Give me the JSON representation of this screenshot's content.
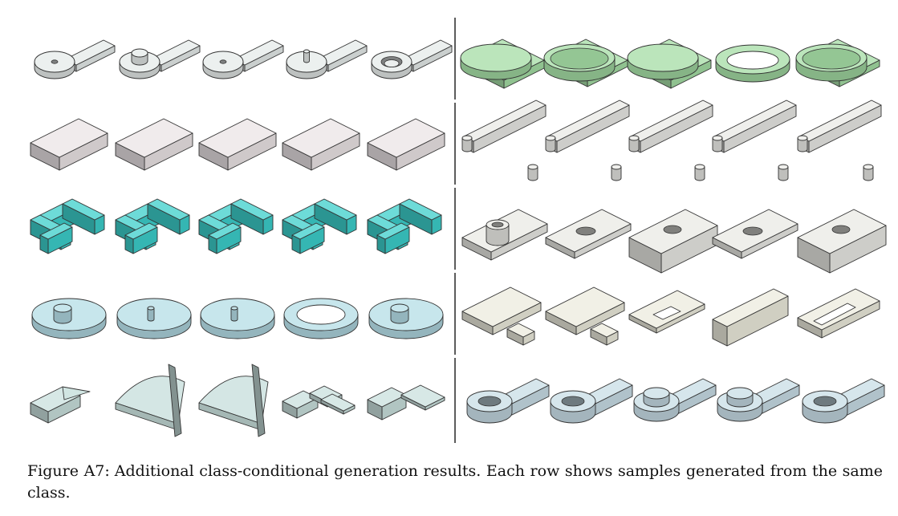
{
  "figure": {
    "label": "Figure A7:",
    "caption": "Additional class-conditional generation results. Each row shows samples generated from the same class.",
    "colors": {
      "left_rows": [
        "#e6ebea",
        "#ebe4e6",
        "#3ccfcb",
        "#b4dde6",
        "#c9e0dd"
      ],
      "right_rows": [
        "#a4dca4",
        "#e9e9e5",
        "#e9e9e4",
        "#ecebdd",
        "#c8dde6"
      ],
      "divider": "#333333",
      "edge": "#333333"
    },
    "panels": {
      "left": [
        [
          "key-plate-hole-icon",
          "key-plate-boss-icon",
          "key-plate-hole-icon",
          "key-plate-pin-icon",
          "key-plate-ring-icon"
        ],
        [
          "flat-block-icon",
          "flat-block-icon",
          "flat-block-icon",
          "flat-block-icon",
          "flat-block-icon"
        ],
        [
          "c-clip-icon",
          "c-clip-icon",
          "c-clip-icon",
          "c-clip-icon",
          "c-clip-icon"
        ],
        [
          "cam-disc-boss-icon",
          "cam-disc-pin-icon",
          "cam-disc-pin-icon",
          "cam-ring-icon",
          "cam-disc-boss-icon"
        ],
        [
          "wedge-block-icon",
          "fan-plate-icon",
          "fan-plate-icon",
          "stacked-plates-icon",
          "tray-block-icon"
        ]
      ],
      "right": [
        [
          "disc-on-square-icon",
          "cup-on-square-icon",
          "disc-on-square-icon",
          "ring-on-square-icon",
          "cup-on-square-icon"
        ],
        [
          "notched-bar-icon",
          "notched-bar-icon",
          "notched-bar-icon",
          "notched-bar-icon",
          "notched-bar-icon"
        ],
        [
          "plate-tube-icon",
          "plate-counterbore-icon",
          "block-counterbore-icon",
          "plate-counterbore-icon",
          "block-counterbore-icon"
        ],
        [
          "stepped-plate-icon",
          "stepped-plate-icon",
          "u-plate-icon",
          "long-bar-icon",
          "u-frame-icon"
        ],
        [
          "eye-plate-icon",
          "eye-plate-icon",
          "eye-plate-boss-icon",
          "eye-plate-boss-icon",
          "eye-plate-icon"
        ]
      ]
    }
  }
}
